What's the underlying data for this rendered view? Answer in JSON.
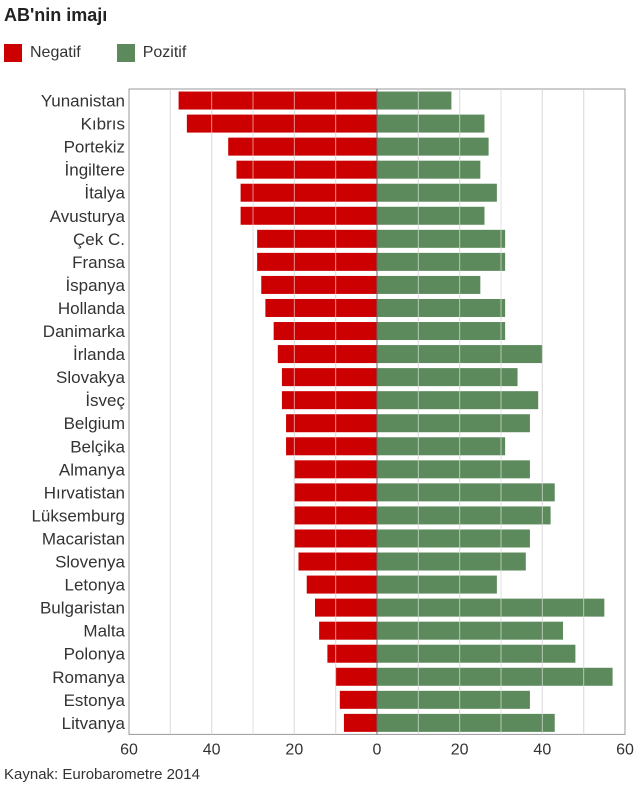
{
  "chart_data": {
    "type": "bar",
    "orientation": "horizontal-diverging",
    "title": "AB'nin imajı",
    "source": "Kaynak: Eurobarometre 2014",
    "categories": [
      "Yunanistan",
      "Kıbrıs",
      "Portekiz",
      "İngiltere",
      "İtalya",
      "Avusturya",
      "Çek C.",
      "Fransa",
      "İspanya",
      "Hollanda",
      "Danimarka",
      "İrlanda",
      "Slovakya",
      "İsveç",
      "Belgium",
      "Belçika",
      "Almanya",
      "Hırvatistan",
      "Lüksemburg",
      "Macaristan",
      "Slovenya",
      "Letonya",
      "Bulgaristan",
      "Malta",
      "Polonya",
      "Romanya",
      "Estonya",
      "Litvanya"
    ],
    "series": [
      {
        "name": "Negatif",
        "color": "#cc0000",
        "values": [
          48,
          46,
          36,
          34,
          33,
          33,
          29,
          29,
          28,
          27,
          25,
          24,
          23,
          23,
          22,
          22,
          20,
          20,
          20,
          20,
          19,
          17,
          15,
          14,
          12,
          10,
          9,
          8
        ]
      },
      {
        "name": "Pozitif",
        "color": "#5c8a5c",
        "values": [
          18,
          26,
          27,
          25,
          29,
          26,
          31,
          31,
          25,
          31,
          31,
          40,
          34,
          39,
          37,
          31,
          37,
          43,
          42,
          37,
          36,
          29,
          55,
          45,
          48,
          57,
          37,
          43
        ]
      }
    ],
    "xlim": [
      -60,
      60
    ],
    "xticks": [
      -60,
      -40,
      -20,
      0,
      20,
      40,
      60
    ],
    "xtick_labels": [
      "60",
      "40",
      "20",
      "0",
      "20",
      "40",
      "60"
    ],
    "grid": true,
    "legend_position": "top-left"
  }
}
